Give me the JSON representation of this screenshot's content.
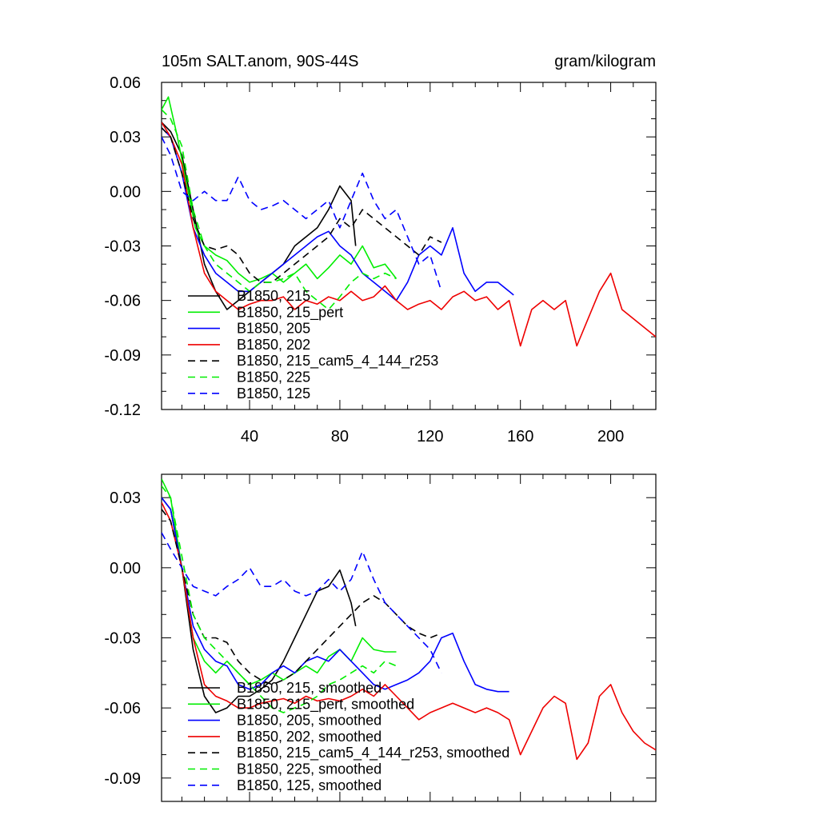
{
  "chart_data": [
    {
      "type": "line",
      "title": "105m SALT.anom, 90S-44S",
      "units": "gram/kilogram",
      "xlabel": "",
      "ylabel": "",
      "xlim": [
        1,
        220
      ],
      "ylim": [
        -0.12,
        0.06
      ],
      "xticks": [
        40,
        80,
        120,
        160,
        200
      ],
      "xtick_labels": [
        "40",
        "80",
        "120",
        "160",
        "200"
      ],
      "yticks": [
        0.06,
        0.03,
        0.0,
        -0.03,
        -0.06,
        -0.09,
        -0.12
      ],
      "ytick_labels": [
        "0.06",
        "0.03",
        "0.00",
        "-0.03",
        "-0.06",
        "-0.09",
        "-0.12"
      ],
      "legend_position": "bottom-left",
      "series": [
        {
          "name": "B1850, 215",
          "color": "#000000",
          "dash": "solid",
          "x": [
            1,
            5,
            10,
            15,
            20,
            25,
            30,
            35,
            40,
            45,
            50,
            55,
            60,
            65,
            70,
            75,
            80,
            85,
            87
          ],
          "y": [
            0.038,
            0.033,
            0.02,
            -0.01,
            -0.04,
            -0.055,
            -0.065,
            -0.06,
            -0.055,
            -0.05,
            -0.045,
            -0.04,
            -0.03,
            -0.025,
            -0.02,
            -0.01,
            0.003,
            -0.005,
            -0.03
          ]
        },
        {
          "name": "B1850, 215_pert",
          "color": "#00ee00",
          "dash": "solid",
          "x": [
            1,
            4,
            8,
            12,
            16,
            20,
            25,
            30,
            35,
            40,
            45,
            50,
            55,
            60,
            65,
            70,
            75,
            80,
            85,
            90,
            95,
            100,
            105
          ],
          "y": [
            0.045,
            0.052,
            0.03,
            0.005,
            -0.02,
            -0.03,
            -0.035,
            -0.038,
            -0.045,
            -0.05,
            -0.048,
            -0.045,
            -0.05,
            -0.045,
            -0.04,
            -0.048,
            -0.042,
            -0.035,
            -0.04,
            -0.03,
            -0.042,
            -0.04,
            -0.048
          ]
        },
        {
          "name": "B1850, 205",
          "color": "#0000ff",
          "dash": "solid",
          "x": [
            1,
            5,
            10,
            15,
            20,
            25,
            30,
            35,
            40,
            45,
            50,
            55,
            60,
            65,
            70,
            75,
            80,
            85,
            90,
            95,
            100,
            105,
            110,
            115,
            120,
            125,
            130,
            135,
            140,
            145,
            150,
            155,
            157
          ],
          "y": [
            0.035,
            0.03,
            0.01,
            -0.02,
            -0.035,
            -0.045,
            -0.05,
            -0.055,
            -0.055,
            -0.05,
            -0.045,
            -0.04,
            -0.035,
            -0.03,
            -0.025,
            -0.022,
            -0.03,
            -0.035,
            -0.045,
            -0.05,
            -0.055,
            -0.06,
            -0.05,
            -0.035,
            -0.03,
            -0.035,
            -0.02,
            -0.045,
            -0.055,
            -0.05,
            -0.05,
            -0.055,
            -0.057
          ]
        },
        {
          "name": "B1850, 202",
          "color": "#ee0000",
          "dash": "solid",
          "x": [
            1,
            5,
            10,
            15,
            20,
            25,
            30,
            35,
            40,
            45,
            50,
            55,
            60,
            65,
            70,
            75,
            80,
            85,
            90,
            95,
            100,
            105,
            110,
            115,
            120,
            125,
            130,
            135,
            140,
            145,
            150,
            155,
            160,
            165,
            170,
            175,
            180,
            185,
            190,
            195,
            200,
            205,
            210,
            215,
            220
          ],
          "y": [
            0.038,
            0.03,
            0.015,
            -0.02,
            -0.045,
            -0.055,
            -0.06,
            -0.065,
            -0.062,
            -0.06,
            -0.06,
            -0.058,
            -0.065,
            -0.06,
            -0.062,
            -0.058,
            -0.06,
            -0.055,
            -0.06,
            -0.058,
            -0.052,
            -0.06,
            -0.065,
            -0.062,
            -0.06,
            -0.065,
            -0.058,
            -0.055,
            -0.06,
            -0.058,
            -0.065,
            -0.06,
            -0.085,
            -0.065,
            -0.06,
            -0.065,
            -0.06,
            -0.085,
            -0.07,
            -0.055,
            -0.045,
            -0.065,
            -0.07,
            -0.075,
            -0.08
          ]
        },
        {
          "name": "B1850, 215_cam5_4_144_r253",
          "color": "#000000",
          "dash": "dashed",
          "x": [
            1,
            5,
            10,
            15,
            20,
            25,
            30,
            35,
            40,
            45,
            50,
            55,
            60,
            65,
            70,
            75,
            80,
            85,
            90,
            95,
            100,
            105,
            110,
            115,
            120,
            125
          ],
          "y": [
            0.035,
            0.03,
            0.01,
            -0.015,
            -0.03,
            -0.032,
            -0.03,
            -0.035,
            -0.045,
            -0.05,
            -0.05,
            -0.045,
            -0.04,
            -0.035,
            -0.03,
            -0.025,
            -0.015,
            -0.02,
            -0.01,
            -0.015,
            -0.02,
            -0.025,
            -0.03,
            -0.035,
            -0.025,
            -0.028
          ]
        },
        {
          "name": "B1850, 225",
          "color": "#00ee00",
          "dash": "dashed",
          "x": [
            1,
            5,
            10,
            15,
            20,
            25,
            30,
            35,
            40,
            45,
            50,
            55,
            60,
            65,
            70,
            75,
            80,
            85,
            90,
            95,
            100,
            105
          ],
          "y": [
            0.045,
            0.04,
            0.025,
            -0.01,
            -0.03,
            -0.04,
            -0.045,
            -0.05,
            -0.055,
            -0.05,
            -0.05,
            -0.048,
            -0.045,
            -0.055,
            -0.06,
            -0.065,
            -0.058,
            -0.05,
            -0.045,
            -0.048,
            -0.045,
            -0.048
          ]
        },
        {
          "name": "B1850, 125",
          "color": "#0000ff",
          "dash": "dashed",
          "x": [
            1,
            5,
            10,
            15,
            20,
            25,
            30,
            35,
            40,
            45,
            50,
            55,
            60,
            65,
            70,
            75,
            80,
            85,
            90,
            95,
            100,
            105,
            110,
            115,
            120,
            125
          ],
          "y": [
            0.03,
            0.02,
            0.0,
            -0.005,
            0.0,
            -0.005,
            -0.005,
            0.008,
            -0.005,
            -0.01,
            -0.008,
            -0.005,
            -0.01,
            -0.015,
            -0.01,
            -0.005,
            -0.02,
            -0.005,
            0.01,
            -0.005,
            -0.015,
            -0.01,
            -0.025,
            -0.04,
            -0.035,
            -0.055
          ]
        }
      ]
    },
    {
      "type": "line",
      "title": "",
      "xlabel": "",
      "ylabel": "",
      "xlim": [
        1,
        220
      ],
      "ylim": [
        -0.1,
        0.04
      ],
      "xticks": [
        40,
        80,
        120,
        160,
        200
      ],
      "yticks": [
        0.03,
        0.0,
        -0.03,
        -0.06,
        -0.09
      ],
      "ytick_labels": [
        "0.03",
        "0.00",
        "-0.03",
        "-0.06",
        "-0.09"
      ],
      "legend_position": "bottom-left",
      "series": [
        {
          "name": "B1850, 215, smoothed",
          "color": "#000000",
          "dash": "solid",
          "x": [
            1,
            5,
            10,
            15,
            20,
            25,
            30,
            35,
            40,
            45,
            50,
            55,
            60,
            65,
            70,
            75,
            80,
            85,
            87
          ],
          "y": [
            0.03,
            0.025,
            0.0,
            -0.035,
            -0.055,
            -0.062,
            -0.06,
            -0.055,
            -0.055,
            -0.052,
            -0.048,
            -0.04,
            -0.03,
            -0.02,
            -0.01,
            -0.008,
            -0.001,
            -0.015,
            -0.025
          ]
        },
        {
          "name": "B1850, 215_pert, smoothed",
          "color": "#00ee00",
          "dash": "solid",
          "x": [
            1,
            5,
            10,
            15,
            20,
            25,
            30,
            35,
            40,
            45,
            50,
            55,
            60,
            65,
            70,
            75,
            80,
            85,
            90,
            95,
            100,
            105
          ],
          "y": [
            0.038,
            0.03,
            0.0,
            -0.03,
            -0.04,
            -0.045,
            -0.04,
            -0.045,
            -0.05,
            -0.048,
            -0.045,
            -0.048,
            -0.045,
            -0.042,
            -0.045,
            -0.038,
            -0.035,
            -0.04,
            -0.03,
            -0.035,
            -0.036,
            -0.036
          ]
        },
        {
          "name": "B1850, 205, smoothed",
          "color": "#0000ff",
          "dash": "solid",
          "x": [
            1,
            5,
            10,
            15,
            20,
            25,
            30,
            35,
            40,
            45,
            50,
            55,
            60,
            65,
            70,
            75,
            80,
            85,
            90,
            95,
            100,
            105,
            110,
            115,
            120,
            125,
            130,
            135,
            140,
            145,
            150,
            155
          ],
          "y": [
            0.03,
            0.025,
            0.0,
            -0.025,
            -0.035,
            -0.04,
            -0.042,
            -0.05,
            -0.052,
            -0.05,
            -0.045,
            -0.042,
            -0.045,
            -0.04,
            -0.038,
            -0.04,
            -0.035,
            -0.04,
            -0.045,
            -0.05,
            -0.052,
            -0.05,
            -0.048,
            -0.045,
            -0.04,
            -0.03,
            -0.028,
            -0.04,
            -0.05,
            -0.052,
            -0.053,
            -0.053
          ]
        },
        {
          "name": "B1850, 202, smoothed",
          "color": "#ee0000",
          "dash": "solid",
          "x": [
            1,
            5,
            10,
            15,
            20,
            25,
            30,
            35,
            40,
            45,
            50,
            55,
            60,
            65,
            70,
            75,
            80,
            85,
            90,
            95,
            100,
            105,
            110,
            115,
            120,
            125,
            130,
            135,
            140,
            145,
            150,
            155,
            160,
            165,
            170,
            175,
            180,
            185,
            190,
            195,
            200,
            205,
            210,
            215,
            220
          ],
          "y": [
            0.028,
            0.02,
            0.0,
            -0.03,
            -0.05,
            -0.055,
            -0.057,
            -0.06,
            -0.06,
            -0.058,
            -0.057,
            -0.056,
            -0.058,
            -0.055,
            -0.057,
            -0.056,
            -0.057,
            -0.055,
            -0.052,
            -0.055,
            -0.05,
            -0.055,
            -0.06,
            -0.065,
            -0.062,
            -0.06,
            -0.058,
            -0.06,
            -0.062,
            -0.06,
            -0.062,
            -0.065,
            -0.08,
            -0.07,
            -0.06,
            -0.055,
            -0.058,
            -0.082,
            -0.075,
            -0.055,
            -0.05,
            -0.062,
            -0.07,
            -0.075,
            -0.078
          ]
        },
        {
          "name": "B1850, 215_cam5_4_144_r253, smoothed",
          "color": "#000000",
          "dash": "dashed",
          "x": [
            1,
            5,
            10,
            15,
            20,
            25,
            30,
            35,
            40,
            45,
            50,
            55,
            60,
            65,
            70,
            75,
            80,
            85,
            90,
            95,
            100,
            105,
            110,
            115,
            120,
            125
          ],
          "y": [
            0.025,
            0.02,
            0.0,
            -0.02,
            -0.03,
            -0.03,
            -0.032,
            -0.04,
            -0.045,
            -0.048,
            -0.05,
            -0.048,
            -0.045,
            -0.04,
            -0.035,
            -0.03,
            -0.025,
            -0.02,
            -0.015,
            -0.012,
            -0.015,
            -0.02,
            -0.025,
            -0.028,
            -0.03,
            -0.028
          ]
        },
        {
          "name": "B1850, 225, smoothed",
          "color": "#00ee00",
          "dash": "dashed",
          "x": [
            1,
            5,
            10,
            15,
            20,
            25,
            30,
            35,
            40,
            45,
            50,
            55,
            60,
            65,
            70,
            75,
            80,
            85,
            90,
            95,
            100,
            105
          ],
          "y": [
            0.035,
            0.03,
            0.005,
            -0.02,
            -0.03,
            -0.035,
            -0.04,
            -0.045,
            -0.05,
            -0.055,
            -0.06,
            -0.062,
            -0.06,
            -0.058,
            -0.055,
            -0.05,
            -0.048,
            -0.045,
            -0.042,
            -0.045,
            -0.04,
            -0.042
          ]
        },
        {
          "name": "B1850, 125, smoothed",
          "color": "#0000ff",
          "dash": "dashed",
          "x": [
            1,
            5,
            10,
            15,
            20,
            25,
            30,
            35,
            40,
            45,
            50,
            55,
            60,
            65,
            70,
            75,
            80,
            85,
            90,
            95,
            100,
            105,
            110,
            115,
            120,
            125
          ],
          "y": [
            0.015,
            0.008,
            0.0,
            -0.008,
            -0.01,
            -0.012,
            -0.008,
            -0.005,
            0.0,
            -0.008,
            -0.008,
            -0.005,
            -0.01,
            -0.012,
            -0.01,
            -0.005,
            -0.01,
            -0.005,
            0.007,
            -0.005,
            -0.015,
            -0.02,
            -0.025,
            -0.03,
            -0.035,
            -0.045
          ]
        }
      ]
    }
  ]
}
